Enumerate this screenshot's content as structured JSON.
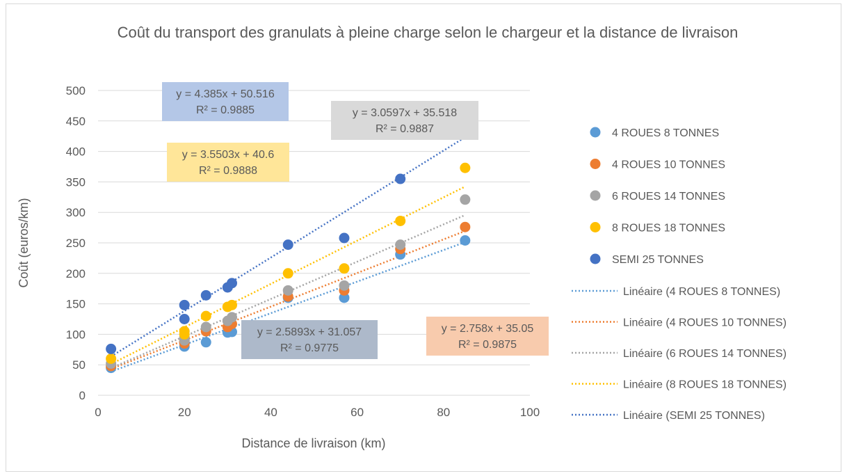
{
  "chart_data": {
    "type": "scatter",
    "title": "Coût du transport des granulats à pleine charge selon le chargeur et la distance de livraison",
    "xlabel": "Distance de livraison (km)",
    "ylabel": "Coût (euros/km)",
    "x": [
      3,
      20,
      20,
      25,
      30,
      31,
      44,
      57,
      70,
      85
    ],
    "series": [
      {
        "name": "4 ROUES 8 TONNES",
        "color": "#5b9bd5",
        "values": [
          45,
          80,
          85,
          87,
          103,
          104,
          160,
          160,
          231,
          254
        ],
        "trendline": {
          "name": "Linéaire (4 ROUES 8 TONNES)",
          "slope": 2.5893,
          "intercept": 31.057,
          "equation": "y = 2.5893x + 31.057",
          "r2": "R² = 0.9775",
          "box_color": "#adb9ca"
        }
      },
      {
        "name": "4 ROUES 10 TONNES",
        "color": "#ed7d31",
        "values": [
          48,
          85,
          90,
          105,
          112,
          117,
          162,
          172,
          240,
          276
        ],
        "trendline": {
          "name": "Linéaire (4 ROUES 10 TONNES)",
          "slope": 2.758,
          "intercept": 35.05,
          "equation": "y = 2.758x + 35.05",
          "r2": "R² = 0.9875",
          "box_color": "#f8cbad"
        }
      },
      {
        "name": "6 ROUES 14 TONNES",
        "color": "#a5a5a5",
        "values": [
          52,
          90,
          95,
          112,
          122,
          128,
          172,
          180,
          247,
          321
        ],
        "trendline": {
          "name": "Linéaire (6 ROUES 14 TONNES)",
          "slope": 3.0597,
          "intercept": 35.518,
          "equation": "y = 3.0597x + 35.518",
          "r2": "R² = 0.9887",
          "box_color": "#d9d9d9"
        }
      },
      {
        "name": "8 ROUES 18 TONNES",
        "color": "#ffc000",
        "values": [
          60,
          105,
          100,
          130,
          145,
          148,
          200,
          208,
          286,
          373
        ],
        "trendline": {
          "name": "Linéaire (8 ROUES 18 TONNES)",
          "slope": 3.5503,
          "intercept": 40.6,
          "equation": "y = 3.5503x + 40.6",
          "r2": "R² = 0.9888",
          "box_color": "#ffe699"
        }
      },
      {
        "name": "SEMI 25 TONNES",
        "color": "#4472c4",
        "values": [
          76,
          148,
          125,
          164,
          177,
          184,
          247,
          258,
          355,
          461
        ],
        "trendline": {
          "name": "Linéaire (SEMI 25 TONNES)",
          "slope": 4.385,
          "intercept": 50.516,
          "equation": "y = 4.385x + 50.516",
          "r2": "R² = 0.9885",
          "box_color": "#b4c7e7"
        }
      }
    ],
    "xlim": [
      0,
      100
    ],
    "xticks": [
      0,
      20,
      40,
      60,
      80,
      100
    ],
    "ylim": [
      0,
      500
    ],
    "yticks": [
      0,
      50,
      100,
      150,
      200,
      250,
      300,
      350,
      400,
      450,
      500
    ],
    "grid": true,
    "legend": "right"
  }
}
